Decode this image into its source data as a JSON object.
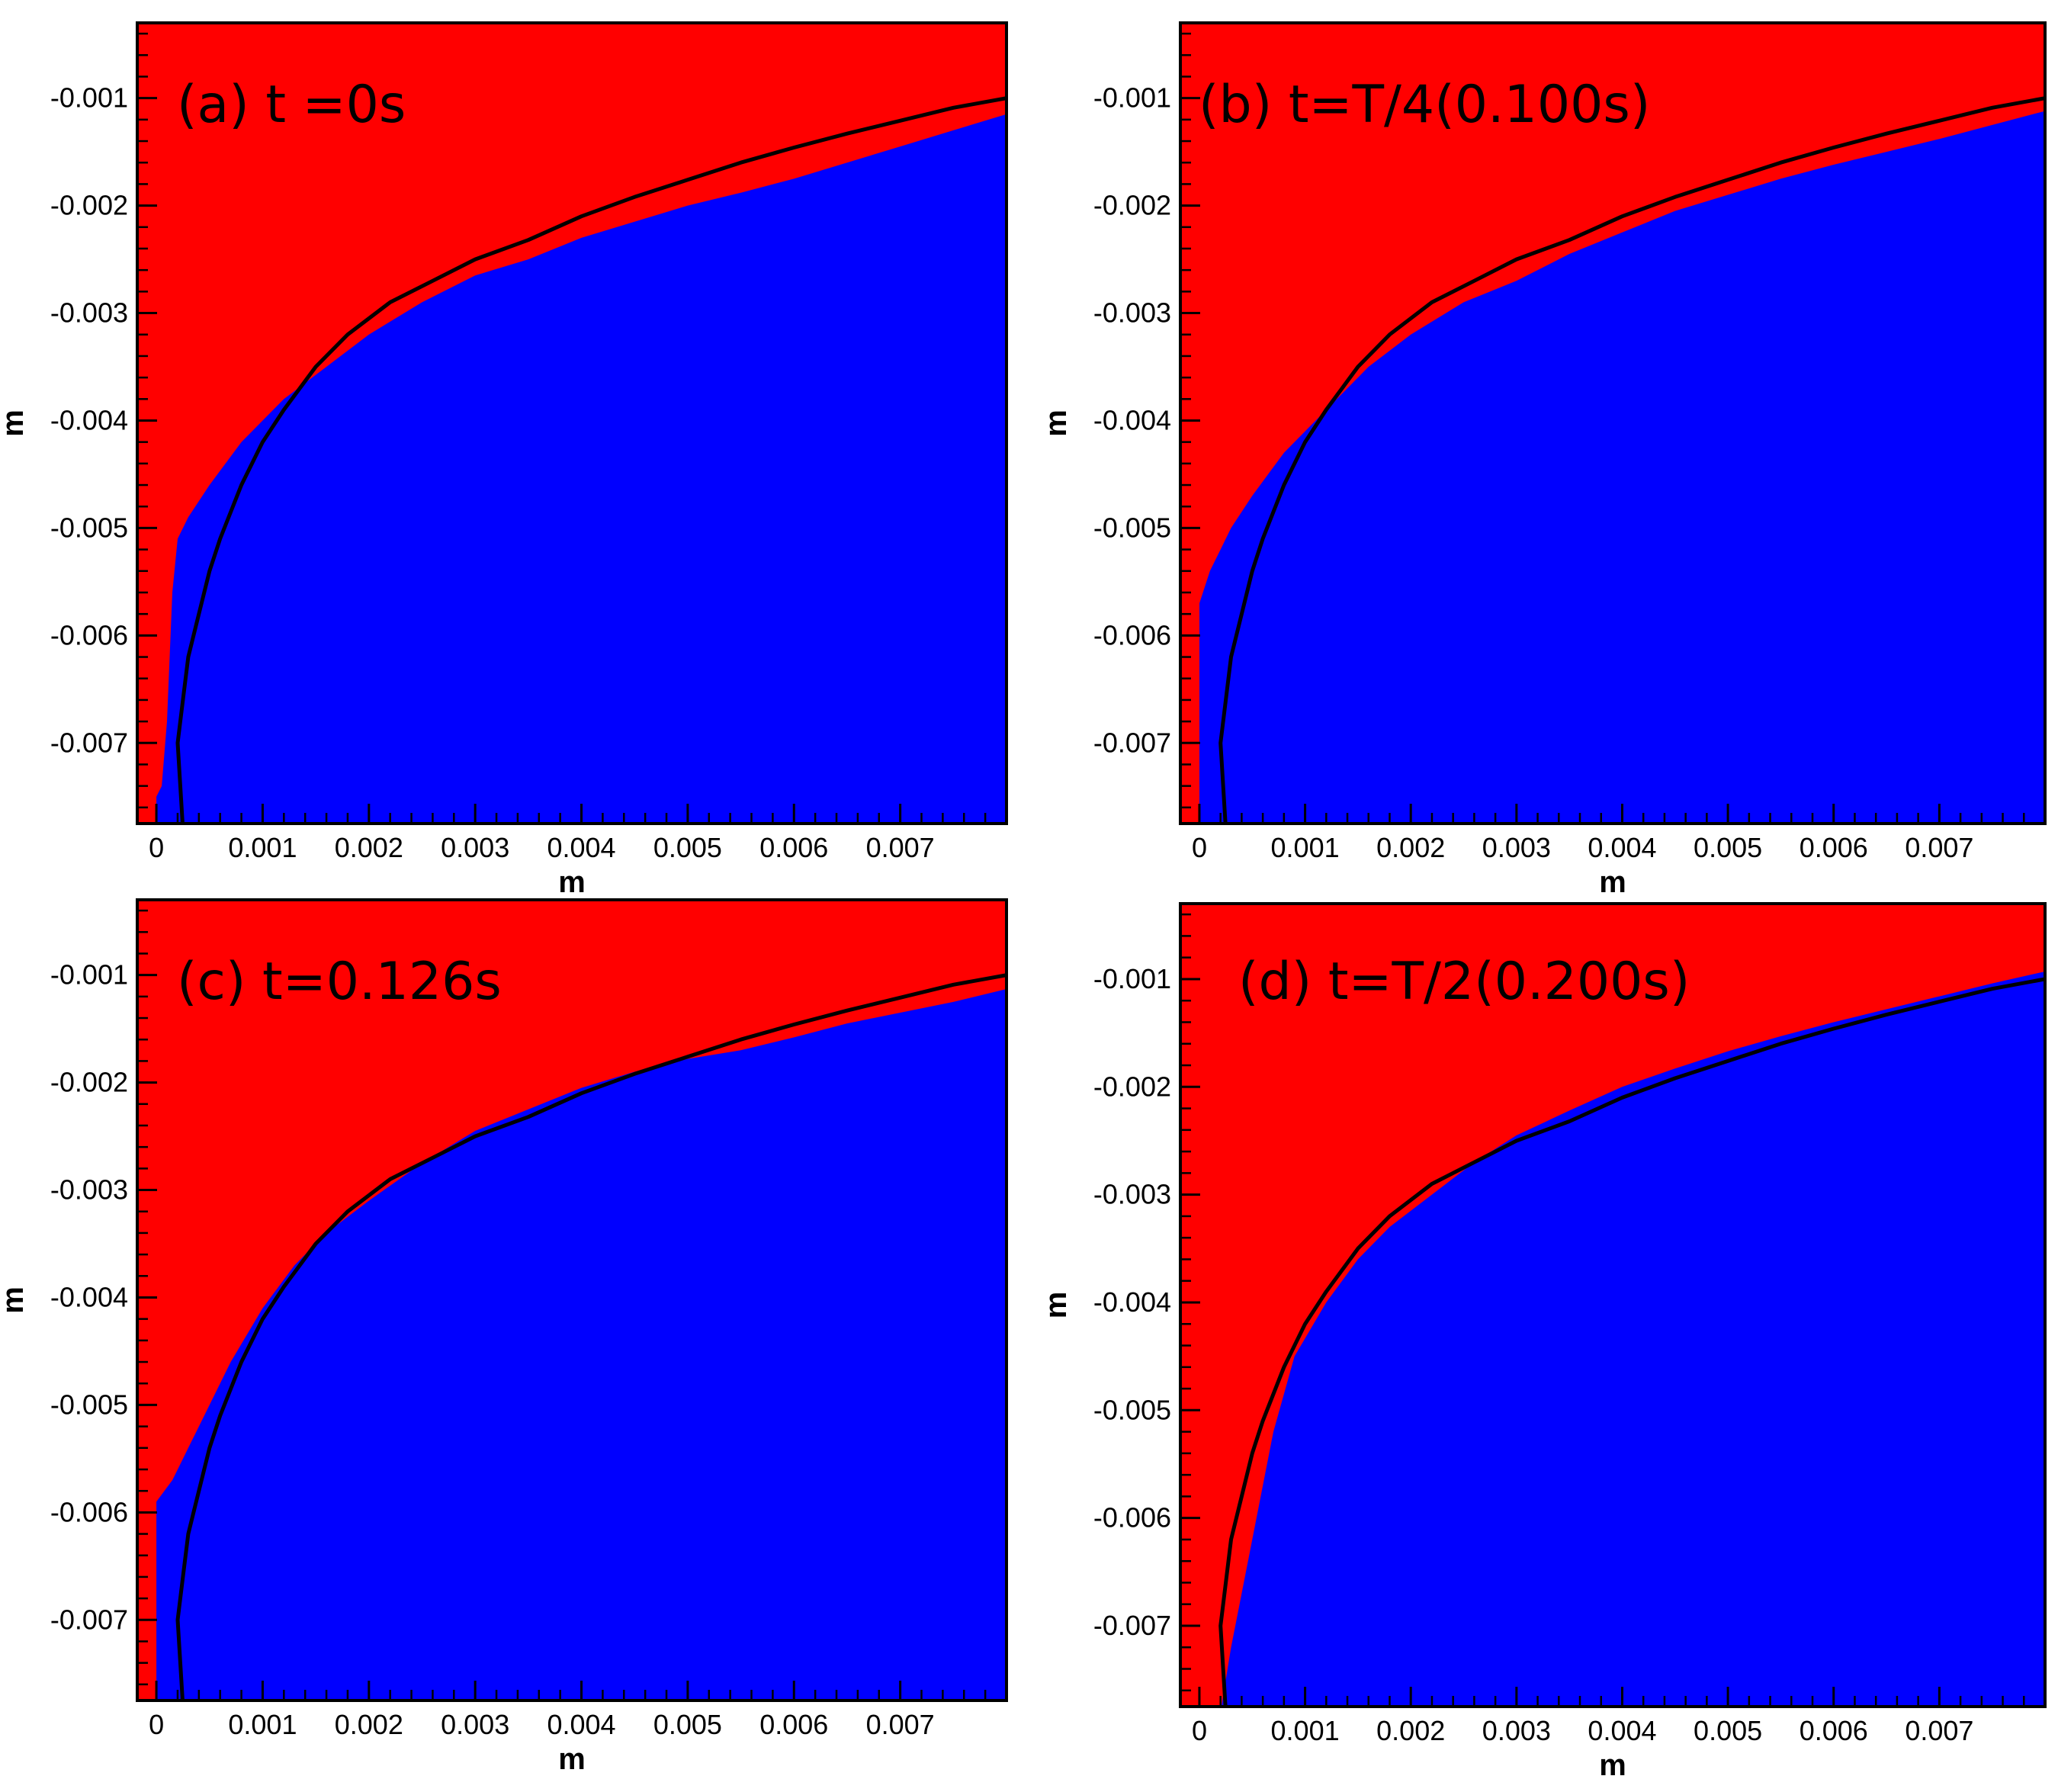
{
  "figure": {
    "colors": {
      "region_a": "#ff0000",
      "region_b": "#0000ff",
      "reference_curve": "#000000",
      "frame": "#000000"
    }
  },
  "chart_data": [
    {
      "type": "area",
      "label": "(a)  t =0s",
      "xlabel": "m",
      "ylabel": "m",
      "xlim": [
        -0.00018,
        0.008
      ],
      "ylim": [
        -0.00775,
        -0.0003
      ],
      "xticks": [
        0,
        0.001,
        0.002,
        0.003,
        0.004,
        0.005,
        0.006,
        0.007
      ],
      "xtick_labels": [
        "0",
        "0.001",
        "0.002",
        "0.003",
        "0.004",
        "0.005",
        "0.006",
        "0.007"
      ],
      "yticks": [
        -0.001,
        -0.002,
        -0.003,
        -0.004,
        -0.005,
        -0.006,
        -0.007
      ],
      "ytick_labels": [
        "-0.001",
        "-0.002",
        "-0.003",
        "-0.004",
        "-0.005",
        "-0.006",
        "-0.007"
      ],
      "interface": {
        "x": [
          0.0,
          5e-05,
          0.0001,
          0.00015,
          0.0002,
          0.0003,
          0.0005,
          0.0008,
          0.0012,
          0.0016,
          0.002,
          0.0025,
          0.003,
          0.0035,
          0.004,
          0.0045,
          0.005,
          0.0055,
          0.006,
          0.0065,
          0.007,
          0.0075,
          0.008
        ],
        "y": [
          -0.0075,
          -0.0074,
          -0.0068,
          -0.0056,
          -0.0051,
          -0.0049,
          -0.0046,
          -0.0042,
          -0.0038,
          -0.0035,
          -0.0032,
          -0.0029,
          -0.00265,
          -0.0025,
          -0.0023,
          -0.00215,
          -0.002,
          -0.00188,
          -0.00175,
          -0.0016,
          -0.00145,
          -0.0013,
          -0.00115
        ]
      },
      "reference_curve": {
        "x": [
          0.00025,
          0.0002,
          0.00025,
          0.0003,
          0.0004,
          0.0005,
          0.0006,
          0.0008,
          0.001,
          0.0012,
          0.0015,
          0.0018,
          0.0022,
          0.0026,
          0.003,
          0.0035,
          0.004,
          0.0045,
          0.005,
          0.0055,
          0.006,
          0.0065,
          0.007,
          0.0075,
          0.008
        ],
        "y": [
          -0.0078,
          -0.007,
          -0.0066,
          -0.0062,
          -0.0058,
          -0.0054,
          -0.0051,
          -0.0046,
          -0.0042,
          -0.0039,
          -0.0035,
          -0.0032,
          -0.0029,
          -0.0027,
          -0.0025,
          -0.00232,
          -0.0021,
          -0.00192,
          -0.00176,
          -0.0016,
          -0.00146,
          -0.00133,
          -0.00121,
          -0.00109,
          -0.001
        ]
      }
    },
    {
      "type": "area",
      "label": "(b)  t=T/4(0.100s)",
      "xlabel": "m",
      "ylabel": "m",
      "xlim": [
        -0.00018,
        0.008
      ],
      "ylim": [
        -0.00775,
        -0.0003
      ],
      "xticks": [
        0,
        0.001,
        0.002,
        0.003,
        0.004,
        0.005,
        0.006,
        0.007
      ],
      "xtick_labels": [
        "0",
        "0.001",
        "0.002",
        "0.003",
        "0.004",
        "0.005",
        "0.006",
        "0.007"
      ],
      "yticks": [
        -0.001,
        -0.002,
        -0.003,
        -0.004,
        -0.005,
        -0.006,
        -0.007
      ],
      "ytick_labels": [
        "-0.001",
        "-0.002",
        "-0.003",
        "-0.004",
        "-0.005",
        "-0.006",
        "-0.007"
      ],
      "interface": {
        "x": [
          0.0,
          0.0001,
          0.0002,
          0.0003,
          0.0005,
          0.0008,
          0.0012,
          0.0016,
          0.002,
          0.0025,
          0.003,
          0.0035,
          0.004,
          0.0045,
          0.005,
          0.0055,
          0.006,
          0.0065,
          0.007,
          0.0075,
          0.008
        ],
        "y": [
          -0.0057,
          -0.0054,
          -0.0052,
          -0.005,
          -0.0047,
          -0.0043,
          -0.0039,
          -0.0035,
          -0.0032,
          -0.0029,
          -0.0027,
          -0.00245,
          -0.00225,
          -0.00205,
          -0.0019,
          -0.00175,
          -0.00162,
          -0.0015,
          -0.00138,
          -0.00125,
          -0.00112
        ]
      },
      "reference_curve": {
        "x": [
          0.00025,
          0.0002,
          0.00025,
          0.0003,
          0.0004,
          0.0005,
          0.0006,
          0.0008,
          0.001,
          0.0012,
          0.0015,
          0.0018,
          0.0022,
          0.0026,
          0.003,
          0.0035,
          0.004,
          0.0045,
          0.005,
          0.0055,
          0.006,
          0.0065,
          0.007,
          0.0075,
          0.008
        ],
        "y": [
          -0.0078,
          -0.007,
          -0.0066,
          -0.0062,
          -0.0058,
          -0.0054,
          -0.0051,
          -0.0046,
          -0.0042,
          -0.0039,
          -0.0035,
          -0.0032,
          -0.0029,
          -0.0027,
          -0.0025,
          -0.00232,
          -0.0021,
          -0.00192,
          -0.00176,
          -0.0016,
          -0.00146,
          -0.00133,
          -0.00121,
          -0.00109,
          -0.001
        ]
      }
    },
    {
      "type": "area",
      "label": "(c)  t=0.126s",
      "xlabel": "m",
      "ylabel": "m",
      "xlim": [
        -0.00018,
        0.008
      ],
      "ylim": [
        -0.00775,
        -0.0003
      ],
      "xticks": [
        0,
        0.001,
        0.002,
        0.003,
        0.004,
        0.005,
        0.006,
        0.007
      ],
      "xtick_labels": [
        "0",
        "0.001",
        "0.002",
        "0.003",
        "0.004",
        "0.005",
        "0.006",
        "0.007"
      ],
      "yticks": [
        -0.001,
        -0.002,
        -0.003,
        -0.004,
        -0.005,
        -0.006,
        -0.007
      ],
      "ytick_labels": [
        "-0.001",
        "-0.002",
        "-0.003",
        "-0.004",
        "-0.005",
        "-0.006",
        "-0.007"
      ],
      "interface": {
        "x": [
          0.0,
          0.00015,
          0.0002,
          0.0003,
          0.0005,
          0.0007,
          0.001,
          0.0013,
          0.0016,
          0.002,
          0.0025,
          0.003,
          0.0035,
          0.004,
          0.0045,
          0.005,
          0.0055,
          0.006,
          0.0065,
          0.007,
          0.0075,
          0.008
        ],
        "y": [
          -0.0059,
          -0.0057,
          -0.0056,
          -0.0054,
          -0.005,
          -0.0046,
          -0.0041,
          -0.0037,
          -0.0034,
          -0.0031,
          -0.00275,
          -0.00245,
          -0.00225,
          -0.00205,
          -0.0019,
          -0.00178,
          -0.0017,
          -0.00158,
          -0.00145,
          -0.00135,
          -0.00125,
          -0.00113
        ]
      },
      "reference_curve": {
        "x": [
          0.00025,
          0.0002,
          0.00025,
          0.0003,
          0.0004,
          0.0005,
          0.0006,
          0.0008,
          0.001,
          0.0012,
          0.0015,
          0.0018,
          0.0022,
          0.0026,
          0.003,
          0.0035,
          0.004,
          0.0045,
          0.005,
          0.0055,
          0.006,
          0.0065,
          0.007,
          0.0075,
          0.008
        ],
        "y": [
          -0.0078,
          -0.007,
          -0.0066,
          -0.0062,
          -0.0058,
          -0.0054,
          -0.0051,
          -0.0046,
          -0.0042,
          -0.0039,
          -0.0035,
          -0.0032,
          -0.0029,
          -0.0027,
          -0.0025,
          -0.00232,
          -0.0021,
          -0.00192,
          -0.00176,
          -0.0016,
          -0.00146,
          -0.00133,
          -0.00121,
          -0.00109,
          -0.001
        ]
      }
    },
    {
      "type": "area",
      "label": "(d)  t=T/2(0.200s)",
      "xlabel": "m",
      "ylabel": "m",
      "xlim": [
        -0.00018,
        0.008
      ],
      "ylim": [
        -0.00775,
        -0.0003
      ],
      "xticks": [
        0,
        0.001,
        0.002,
        0.003,
        0.004,
        0.005,
        0.006,
        0.007
      ],
      "xtick_labels": [
        "0",
        "0.001",
        "0.002",
        "0.003",
        "0.004",
        "0.005",
        "0.006",
        "0.007"
      ],
      "yticks": [
        -0.001,
        -0.002,
        -0.003,
        -0.004,
        -0.005,
        -0.006,
        -0.007
      ],
      "ytick_labels": [
        "-0.001",
        "-0.002",
        "-0.003",
        "-0.004",
        "-0.005",
        "-0.006",
        "-0.007"
      ],
      "interface": {
        "x": [
          0.0002,
          0.0003,
          0.0005,
          0.0007,
          0.0009,
          0.0012,
          0.0015,
          0.0018,
          0.0022,
          0.0026,
          0.003,
          0.0035,
          0.004,
          0.0045,
          0.005,
          0.0055,
          0.006,
          0.0065,
          0.007,
          0.0075,
          0.008
        ],
        "y": [
          -0.0078,
          -0.0072,
          -0.0062,
          -0.0052,
          -0.0045,
          -0.004,
          -0.0036,
          -0.0033,
          -0.003,
          -0.0027,
          -0.00245,
          -0.00222,
          -0.002,
          -0.00183,
          -0.00167,
          -0.00153,
          -0.0014,
          -0.00128,
          -0.00116,
          -0.00104,
          -0.00093
        ]
      },
      "reference_curve": {
        "x": [
          0.00025,
          0.0002,
          0.00025,
          0.0003,
          0.0004,
          0.0005,
          0.0006,
          0.0008,
          0.001,
          0.0012,
          0.0015,
          0.0018,
          0.0022,
          0.0026,
          0.003,
          0.0035,
          0.004,
          0.0045,
          0.005,
          0.0055,
          0.006,
          0.0065,
          0.007,
          0.0075,
          0.008
        ],
        "y": [
          -0.0078,
          -0.007,
          -0.0066,
          -0.0062,
          -0.0058,
          -0.0054,
          -0.0051,
          -0.0046,
          -0.0042,
          -0.0039,
          -0.0035,
          -0.0032,
          -0.0029,
          -0.0027,
          -0.0025,
          -0.00232,
          -0.0021,
          -0.00192,
          -0.00176,
          -0.0016,
          -0.00146,
          -0.00133,
          -0.00121,
          -0.00109,
          -0.001
        ]
      }
    }
  ]
}
